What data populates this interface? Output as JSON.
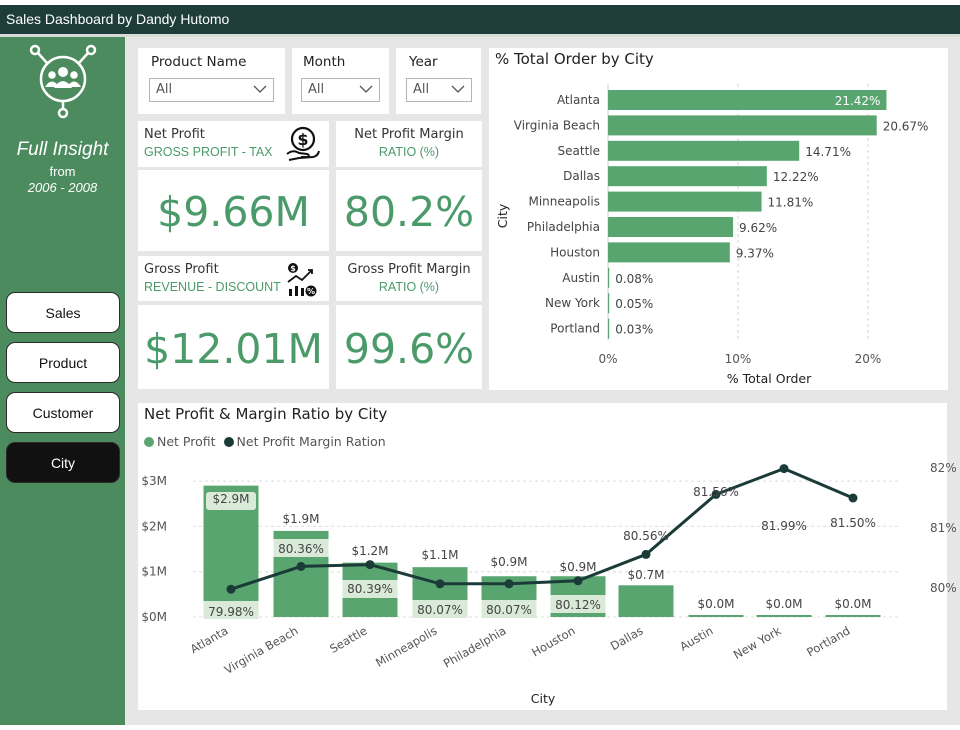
{
  "app": {
    "title": "Sales Dashboard by Dandy Hutomo"
  },
  "sidebar": {
    "title": "Full Insight",
    "from": "from",
    "range": "2006 - 2008",
    "nav": [
      {
        "label": "Sales",
        "active": false
      },
      {
        "label": "Product",
        "active": false
      },
      {
        "label": "Customer",
        "active": false
      },
      {
        "label": "City",
        "active": true
      }
    ]
  },
  "filters": [
    {
      "label": "Product Name",
      "value": "All"
    },
    {
      "label": "Month",
      "value": "All"
    },
    {
      "label": "Year",
      "value": "All"
    }
  ],
  "kpis": {
    "net_profit": {
      "title": "Net Profit",
      "subtitle": "GROSS PROFIT - TAX",
      "value": "$9.66M",
      "icon": "money-hand-icon"
    },
    "net_profit_margin": {
      "title": "Net Profit Margin",
      "subtitle": "RATIO (%)",
      "value": "80.2%"
    },
    "gross_profit": {
      "title": "Gross Profit",
      "subtitle": "REVENUE - DISCOUNT",
      "value": "$12.01M",
      "icon": "profit-growth-icon"
    },
    "gross_profit_margin": {
      "title": "Gross Profit Margin",
      "subtitle": "RATIO (%)",
      "value": "99.6%"
    }
  },
  "colors": {
    "primary_green": "#4b9a6a",
    "bar_green": "#58a56f",
    "dark_teal": "#1e3d3a",
    "sidebar_green": "#4b8b5d",
    "line_dark": "#1b3b38"
  },
  "chart_data": [
    {
      "type": "bar",
      "orientation": "horizontal",
      "title": "% Total Order by City",
      "xlabel": "% Total Order",
      "ylabel": "City",
      "categories": [
        "Atlanta",
        "Virginia Beach",
        "Seattle",
        "Dallas",
        "Minneapolis",
        "Philadelphia",
        "Houston",
        "Austin",
        "New York",
        "Portland"
      ],
      "values": [
        21.42,
        20.67,
        14.71,
        12.22,
        11.81,
        9.62,
        9.37,
        0.08,
        0.05,
        0.03
      ],
      "value_labels": [
        "21.42%",
        "20.67%",
        "14.71%",
        "12.22%",
        "11.81%",
        "9.62%",
        "9.37%",
        "0.08%",
        "0.05%",
        "0.03%"
      ],
      "xticks": [
        "0%",
        "10%",
        "20%"
      ],
      "xlim": [
        0,
        21.5
      ]
    },
    {
      "type": "bar+line",
      "title": "Net Profit & Margin Ratio by City",
      "xlabel": "City",
      "legend": [
        "Net Profit",
        "Net Profit Margin Ration"
      ],
      "categories": [
        "Atlanta",
        "Virginia Beach",
        "Seattle",
        "Minneapolis",
        "Philadelphia",
        "Houston",
        "Dallas",
        "Austin",
        "New York",
        "Portland"
      ],
      "bar_series": {
        "name": "Net Profit",
        "values": [
          2.9,
          1.9,
          1.2,
          1.1,
          0.9,
          0.9,
          0.7,
          0.0,
          0.0,
          0.0
        ],
        "labels": [
          "$2.9M",
          "$1.9M",
          "$1.2M",
          "$1.1M",
          "$0.9M",
          "$0.9M",
          "$0.7M",
          "$0.0M",
          "$0.0M",
          "$0.0M"
        ]
      },
      "line_series": {
        "name": "Net Profit Margin Ration",
        "values": [
          79.98,
          80.36,
          80.39,
          80.07,
          80.07,
          80.12,
          80.56,
          81.56,
          81.99,
          81.5
        ],
        "labels": [
          "79.98%",
          "80.36%",
          "80.39%",
          "80.07%",
          "80.07%",
          "80.12%",
          "80.56%",
          "81.56%",
          "81.99%",
          "81.50%"
        ]
      },
      "y_left_ticks": [
        "$0M",
        "$1M",
        "$2M",
        "$3M"
      ],
      "y_left_lim": [
        0,
        3
      ],
      "y_right_ticks": [
        "80%",
        "81%",
        "82%"
      ],
      "y_right_lim": [
        79.5,
        82.2
      ]
    }
  ]
}
